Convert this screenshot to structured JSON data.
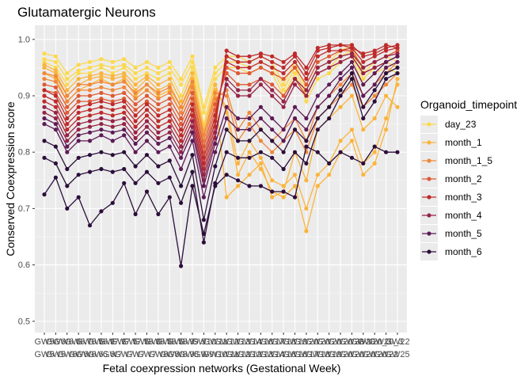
{
  "chart_data": {
    "type": "line",
    "title": "Glutamatergic Neurons",
    "xlabel": "Fetal coexpression networks (Gestational Week)",
    "ylabel": "Conserved Coexpression score",
    "ylim": [
      0.48,
      1.025
    ],
    "yticks": [
      0.5,
      0.6,
      0.7,
      0.8,
      0.9,
      1.0
    ],
    "ytick_labels": [
      "0.5",
      "0.6",
      "0.7",
      "0.8",
      "0.9",
      "1.0"
    ],
    "categories": [
      "GW5",
      "GW5",
      "GW6",
      "GW6",
      "GW6.6",
      "GW6.6",
      "GW7",
      "GW7",
      "GW7",
      "GW7",
      "GW8",
      "GW8",
      "GW8.9",
      "GW8.9",
      "GW9",
      "GW10",
      "GW11",
      "GW12",
      "GW12",
      "GW13",
      "GW14",
      "GW16",
      "GW16",
      "GW17",
      "GW18",
      "GW19",
      "GW20",
      "GW20",
      "GW20",
      "GW20_3",
      "GW22",
      "GW25"
    ],
    "x_tick_labels_row1": [
      "GW5",
      "GW6",
      "GW6.6",
      "GW6.7",
      "GW6.5",
      "GW6.9",
      "GW7.3",
      "GW7.5",
      "GW7.5",
      "GW8.3",
      "GW8.5",
      "GW8.5",
      "GW8.9",
      "GW9.5",
      "GW10",
      "GW11",
      "GW12",
      "GW13",
      "GW14",
      "GW16",
      "GW17",
      "GW18",
      "GW19",
      "GW20",
      "GW20",
      "GW20",
      "GW20",
      "GW20",
      "GW20",
      "GW20_3",
      "GW20_3",
      "GW22"
    ],
    "x_tick_labels_row2": [
      "GW5",
      "GW5",
      "GW6",
      "GW6",
      "GW6.6",
      "GW6.6",
      "GW7",
      "GW7",
      "GW7",
      "GW7",
      "GW8",
      "GW8",
      "GW8.9",
      "GW8.9",
      "GW9",
      "GW10",
      "GW11",
      "GW12",
      "GW12",
      "GW13",
      "GW14",
      "GW16",
      "GW16",
      "GW17",
      "GW18",
      "GW19",
      "GW20",
      "GW20",
      "GW20",
      "GW20",
      "GW22",
      "GW25"
    ],
    "legend": {
      "title": "Organoid_timepoint",
      "position": "right",
      "entries": [
        {
          "label": "day_23",
          "color": "#FCD94E"
        },
        {
          "label": "month_1",
          "color": "#FBB43C"
        },
        {
          "label": "month_1_5",
          "color": "#F0883A"
        },
        {
          "label": "month_2",
          "color": "#DE5A34"
        },
        {
          "label": "month_3",
          "color": "#BF2A2A"
        },
        {
          "label": "month_4",
          "color": "#962447"
        },
        {
          "label": "month_5",
          "color": "#5E1A56"
        },
        {
          "label": "month_6",
          "color": "#2C0E3A"
        }
      ]
    },
    "series": [
      {
        "group": "day_23",
        "color": "#FCD94E",
        "values": [
          0.975,
          0.97,
          0.94,
          0.955,
          0.96,
          0.965,
          0.96,
          0.965,
          0.95,
          0.96,
          0.95,
          0.96,
          0.93,
          0.97,
          0.88,
          0.95,
          0.97,
          0.97,
          0.96,
          0.97,
          0.96,
          0.92,
          0.96,
          0.91,
          0.95,
          0.96,
          0.98,
          0.99,
          0.94,
          0.96,
          0.97,
          0.96
        ]
      },
      {
        "group": "day_23",
        "color": "#FCD94E",
        "values": [
          0.965,
          0.96,
          0.93,
          0.945,
          0.95,
          0.955,
          0.95,
          0.955,
          0.94,
          0.95,
          0.94,
          0.95,
          0.92,
          0.96,
          0.87,
          0.94,
          0.96,
          0.96,
          0.95,
          0.96,
          0.95,
          0.91,
          0.95,
          0.9,
          0.94,
          0.95,
          0.97,
          0.98,
          0.93,
          0.95,
          0.96,
          0.95
        ]
      },
      {
        "group": "day_23",
        "color": "#FCD94E",
        "values": [
          0.96,
          0.95,
          0.92,
          0.94,
          0.94,
          0.95,
          0.94,
          0.95,
          0.93,
          0.94,
          0.93,
          0.94,
          0.9,
          0.95,
          0.85,
          0.93,
          0.95,
          0.95,
          0.94,
          0.95,
          0.94,
          0.9,
          0.94,
          0.89,
          0.93,
          0.94,
          0.96,
          0.97,
          0.92,
          0.94,
          0.95,
          0.94
        ]
      },
      {
        "group": "month_1",
        "color": "#FBB43C",
        "values": [
          0.955,
          0.945,
          0.91,
          0.93,
          0.935,
          0.94,
          0.935,
          0.94,
          0.92,
          0.935,
          0.92,
          0.93,
          0.89,
          0.94,
          0.84,
          0.92,
          0.87,
          0.76,
          0.8,
          0.77,
          0.73,
          0.72,
          0.74,
          0.66,
          0.74,
          0.76,
          0.8,
          0.82,
          0.76,
          0.78,
          0.84,
          0.93
        ]
      },
      {
        "group": "month_1",
        "color": "#FBB43C",
        "values": [
          0.95,
          0.94,
          0.9,
          0.92,
          0.93,
          0.935,
          0.93,
          0.935,
          0.91,
          0.93,
          0.91,
          0.92,
          0.88,
          0.93,
          0.83,
          0.91,
          0.88,
          0.78,
          0.82,
          0.79,
          0.75,
          0.74,
          0.76,
          0.7,
          0.76,
          0.78,
          0.82,
          0.84,
          0.78,
          0.8,
          0.86,
          0.92
        ]
      },
      {
        "group": "month_1",
        "color": "#FBB43C",
        "values": [
          0.94,
          0.93,
          0.89,
          0.91,
          0.92,
          0.93,
          0.92,
          0.93,
          0.9,
          0.92,
          0.9,
          0.91,
          0.87,
          0.92,
          0.82,
          0.9,
          0.72,
          0.74,
          0.76,
          0.78,
          0.72,
          0.73,
          0.8,
          0.75,
          0.84,
          0.86,
          0.88,
          0.9,
          0.84,
          0.86,
          0.9,
          0.88
        ]
      },
      {
        "group": "month_1_5",
        "color": "#F0883A",
        "values": [
          0.94,
          0.935,
          0.9,
          0.92,
          0.92,
          0.925,
          0.92,
          0.925,
          0.905,
          0.92,
          0.905,
          0.915,
          0.88,
          0.925,
          0.83,
          0.905,
          0.9,
          0.82,
          0.85,
          0.82,
          0.8,
          0.82,
          0.84,
          0.8,
          0.86,
          0.88,
          0.9,
          0.92,
          0.88,
          0.9,
          0.92,
          0.94
        ]
      },
      {
        "group": "month_1_5",
        "color": "#F0883A",
        "values": [
          0.93,
          0.925,
          0.89,
          0.91,
          0.91,
          0.915,
          0.91,
          0.915,
          0.895,
          0.91,
          0.895,
          0.905,
          0.87,
          0.915,
          0.82,
          0.895,
          0.91,
          0.84,
          0.87,
          0.84,
          0.82,
          0.84,
          0.86,
          0.82,
          0.88,
          0.9,
          0.92,
          0.94,
          0.9,
          0.92,
          0.94,
          0.96
        ]
      },
      {
        "group": "month_2",
        "color": "#DE5A34",
        "values": [
          0.92,
          0.915,
          0.88,
          0.9,
          0.9,
          0.905,
          0.9,
          0.905,
          0.885,
          0.9,
          0.885,
          0.895,
          0.86,
          0.905,
          0.81,
          0.885,
          0.94,
          0.92,
          0.92,
          0.93,
          0.92,
          0.9,
          0.93,
          0.9,
          0.94,
          0.95,
          0.96,
          0.97,
          0.94,
          0.95,
          0.96,
          0.97
        ]
      },
      {
        "group": "month_2",
        "color": "#DE5A34",
        "values": [
          0.91,
          0.905,
          0.87,
          0.89,
          0.89,
          0.895,
          0.89,
          0.895,
          0.875,
          0.89,
          0.875,
          0.885,
          0.85,
          0.895,
          0.8,
          0.875,
          0.95,
          0.94,
          0.94,
          0.95,
          0.94,
          0.93,
          0.95,
          0.92,
          0.96,
          0.97,
          0.98,
          0.98,
          0.95,
          0.96,
          0.97,
          0.98
        ]
      },
      {
        "group": "month_3",
        "color": "#BF2A2A",
        "values": [
          0.91,
          0.9,
          0.86,
          0.88,
          0.885,
          0.89,
          0.885,
          0.89,
          0.865,
          0.885,
          0.865,
          0.875,
          0.84,
          0.885,
          0.79,
          0.865,
          0.96,
          0.95,
          0.95,
          0.96,
          0.95,
          0.94,
          0.96,
          0.93,
          0.97,
          0.98,
          0.98,
          0.985,
          0.96,
          0.97,
          0.98,
          0.985
        ]
      },
      {
        "group": "month_3",
        "color": "#BF2A2A",
        "values": [
          0.9,
          0.89,
          0.85,
          0.87,
          0.875,
          0.88,
          0.875,
          0.88,
          0.855,
          0.875,
          0.855,
          0.865,
          0.83,
          0.875,
          0.78,
          0.855,
          0.97,
          0.96,
          0.96,
          0.97,
          0.96,
          0.95,
          0.97,
          0.94,
          0.98,
          0.985,
          0.99,
          0.99,
          0.97,
          0.975,
          0.985,
          0.99
        ]
      },
      {
        "group": "month_3",
        "color": "#BF2A2A",
        "values": [
          0.89,
          0.88,
          0.84,
          0.86,
          0.865,
          0.87,
          0.865,
          0.87,
          0.845,
          0.865,
          0.845,
          0.855,
          0.82,
          0.865,
          0.77,
          0.845,
          0.98,
          0.97,
          0.97,
          0.975,
          0.97,
          0.96,
          0.975,
          0.95,
          0.985,
          0.99,
          0.99,
          0.985,
          0.975,
          0.98,
          0.99,
          0.985
        ]
      },
      {
        "group": "month_4",
        "color": "#962447",
        "values": [
          0.88,
          0.87,
          0.83,
          0.85,
          0.855,
          0.86,
          0.855,
          0.86,
          0.835,
          0.855,
          0.835,
          0.845,
          0.81,
          0.855,
          0.76,
          0.835,
          0.92,
          0.9,
          0.9,
          0.92,
          0.9,
          0.88,
          0.92,
          0.9,
          0.94,
          0.95,
          0.96,
          0.97,
          0.94,
          0.95,
          0.96,
          0.97
        ]
      },
      {
        "group": "month_4",
        "color": "#962447",
        "values": [
          0.87,
          0.86,
          0.82,
          0.84,
          0.845,
          0.85,
          0.845,
          0.85,
          0.825,
          0.845,
          0.825,
          0.835,
          0.8,
          0.845,
          0.75,
          0.825,
          0.93,
          0.91,
          0.91,
          0.93,
          0.91,
          0.89,
          0.93,
          0.91,
          0.95,
          0.96,
          0.97,
          0.975,
          0.95,
          0.96,
          0.97,
          0.975
        ]
      },
      {
        "group": "month_5",
        "color": "#5E1A56",
        "values": [
          0.86,
          0.85,
          0.81,
          0.83,
          0.835,
          0.84,
          0.835,
          0.84,
          0.815,
          0.835,
          0.815,
          0.825,
          0.79,
          0.835,
          0.74,
          0.815,
          0.88,
          0.86,
          0.86,
          0.88,
          0.86,
          0.84,
          0.88,
          0.86,
          0.9,
          0.92,
          0.94,
          0.96,
          0.92,
          0.94,
          0.96,
          0.97
        ]
      },
      {
        "group": "month_5",
        "color": "#5E1A56",
        "values": [
          0.85,
          0.84,
          0.8,
          0.82,
          0.82,
          0.83,
          0.82,
          0.83,
          0.8,
          0.82,
          0.8,
          0.81,
          0.77,
          0.82,
          0.72,
          0.8,
          0.86,
          0.84,
          0.84,
          0.86,
          0.84,
          0.82,
          0.86,
          0.84,
          0.88,
          0.9,
          0.93,
          0.95,
          0.9,
          0.92,
          0.95,
          0.96
        ]
      },
      {
        "group": "month_6",
        "color": "#2C0E3A",
        "values": [
          0.82,
          0.81,
          0.77,
          0.79,
          0.795,
          0.8,
          0.795,
          0.8,
          0.775,
          0.795,
          0.775,
          0.785,
          0.74,
          0.795,
          0.68,
          0.775,
          0.84,
          0.82,
          0.82,
          0.84,
          0.82,
          0.8,
          0.84,
          0.82,
          0.86,
          0.88,
          0.91,
          0.94,
          0.88,
          0.91,
          0.94,
          0.95
        ]
      },
      {
        "group": "month_6",
        "color": "#2C0E3A",
        "values": [
          0.79,
          0.78,
          0.74,
          0.76,
          0.765,
          0.77,
          0.765,
          0.77,
          0.745,
          0.765,
          0.745,
          0.755,
          0.71,
          0.765,
          0.64,
          0.745,
          0.8,
          0.79,
          0.79,
          0.8,
          0.79,
          0.77,
          0.8,
          0.78,
          0.84,
          0.86,
          0.9,
          0.93,
          0.86,
          0.89,
          0.93,
          0.94
        ]
      },
      {
        "group": "month_6",
        "color": "#2C0E3A",
        "values": [
          0.725,
          0.755,
          0.7,
          0.72,
          0.67,
          0.695,
          0.71,
          0.745,
          0.69,
          0.73,
          0.69,
          0.72,
          0.598,
          0.74,
          0.655,
          0.74,
          0.76,
          0.75,
          0.74,
          0.74,
          0.73,
          0.73,
          0.72,
          0.81,
          0.8,
          0.78,
          0.8,
          0.79,
          0.78,
          0.81,
          0.8,
          0.8
        ]
      }
    ]
  }
}
